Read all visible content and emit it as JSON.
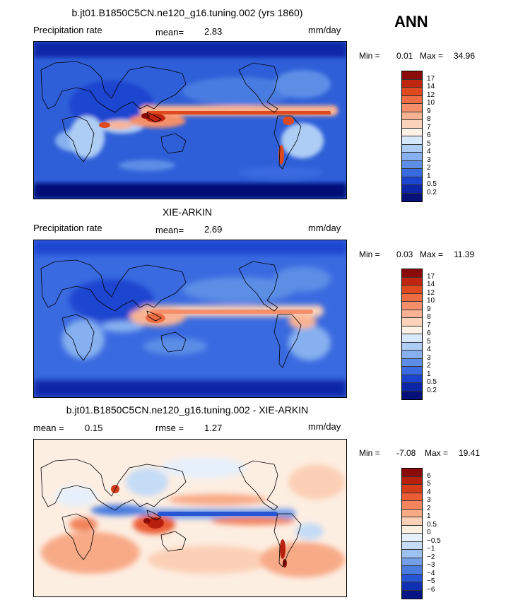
{
  "season": "ANN",
  "panels": [
    {
      "title": "b.jt01.B1850C5CN.ne120_g16.tuning.002 (yrs 1860)",
      "left_text": "Precipitation rate",
      "stat1_label": "mean=",
      "stat1_value": "2.83",
      "stat2_label": "",
      "stat2_value": "",
      "units": "mm/day",
      "min_label": "Min =",
      "min_value": "0.01",
      "max_label": "Max =",
      "max_value": "34.96",
      "levels": [
        "17",
        "14",
        "12",
        "10",
        "9",
        "8",
        "7",
        "6",
        "5",
        "4",
        "3",
        "2",
        "1",
        "0.5",
        "0.2"
      ],
      "colors": [
        "#8b0a0a",
        "#c0260f",
        "#de4a1e",
        "#ee6c42",
        "#f58f6b",
        "#f9b393",
        "#fcd3ba",
        "#fdf0e4",
        "#d6e8fb",
        "#adcdf5",
        "#86b0ef",
        "#5c8ee6",
        "#3a6ae0",
        "#1b45d0",
        "#0d26a8",
        "#051078"
      ]
    },
    {
      "title": "XIE-ARKIN",
      "left_text": "Precipitation rate",
      "stat1_label": "mean=",
      "stat1_value": "2.69",
      "stat2_label": "",
      "stat2_value": "",
      "units": "mm/day",
      "min_label": "Min =",
      "min_value": "0.03",
      "max_label": "Max =",
      "max_value": "11.39",
      "levels": [
        "17",
        "14",
        "12",
        "10",
        "9",
        "8",
        "7",
        "6",
        "5",
        "4",
        "3",
        "2",
        "1",
        "0.5",
        "0.2"
      ],
      "colors": [
        "#8b0a0a",
        "#c0260f",
        "#de4a1e",
        "#ee6c42",
        "#f58f6b",
        "#f9b393",
        "#fcd3ba",
        "#fdf0e4",
        "#d6e8fb",
        "#adcdf5",
        "#86b0ef",
        "#5c8ee6",
        "#3a6ae0",
        "#1b45d0",
        "#0d26a8",
        "#051078"
      ]
    },
    {
      "title": "b.jt01.B1850C5CN.ne120_g16.tuning.002 - XIE-ARKIN",
      "left_text": "",
      "stat1_label": "mean =",
      "stat1_value": "0.15",
      "stat2_label": "rmse =",
      "stat2_value": "1.27",
      "units": "mm/day",
      "min_label": "Min =",
      "min_value": "-7.08",
      "max_label": "Max =",
      "max_value": "19.41",
      "levels": [
        "6",
        "5",
        "4",
        "3",
        "2",
        "1",
        "0.5",
        "0",
        "−0.5",
        "−1",
        "−2",
        "−3",
        "−4",
        "−5",
        "−6"
      ],
      "colors": [
        "#8b0a0a",
        "#b8200e",
        "#d63c1a",
        "#e95d35",
        "#f3845d",
        "#f8aa87",
        "#fcd0b6",
        "#fdeee2",
        "#e6f0fb",
        "#c5dcf6",
        "#9dc1f0",
        "#739fe8",
        "#4a7ce0",
        "#2656d4",
        "#0f32b4",
        "#061585"
      ]
    }
  ]
}
